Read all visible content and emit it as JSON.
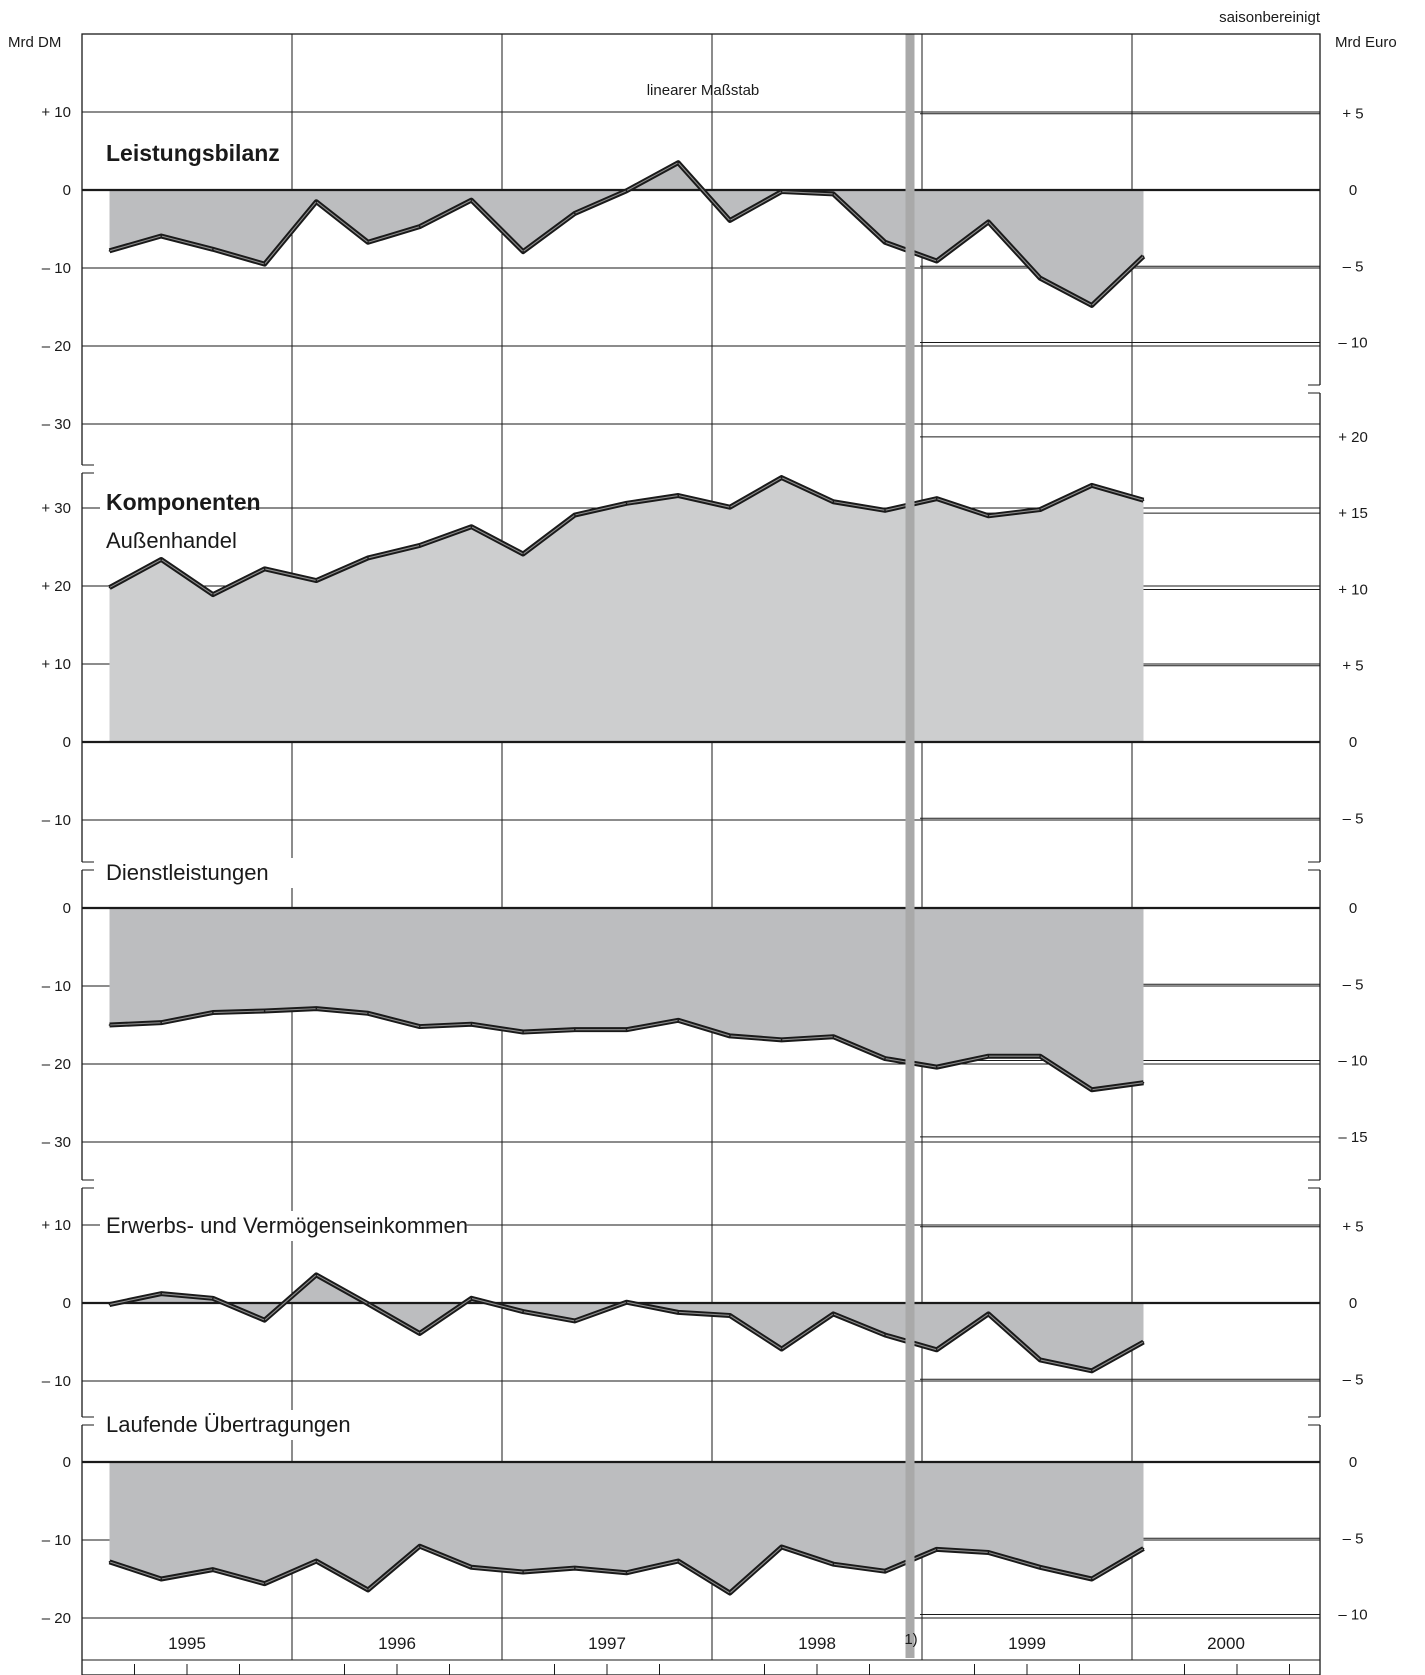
{
  "header": {
    "note": "saisonbereinigt",
    "left_unit": "Mrd DM",
    "right_unit": "Mrd Euro",
    "scale_note": "linearer Maßstab",
    "footnote_marker": "1)"
  },
  "chart_data": {
    "type": "area",
    "x_axis": {
      "years": [
        "1995",
        "1996",
        "1997",
        "1998",
        "1999",
        "2000"
      ],
      "quarters_per_year": 4,
      "points": 21,
      "first_point": "1995 Q1",
      "last_point": "2000 Q1",
      "euro_changeover_after": "1998 Q4"
    },
    "colors": {
      "fill": "#bcbdbf",
      "fill_light": "#cdcecf",
      "line": "#1a1a1a",
      "euro_band": "#a9a9a9"
    },
    "panels": [
      {
        "id": "leistungsbilanz",
        "title": "Leistungsbilanz",
        "subtitle": "",
        "bold": true,
        "ylim_dm": [
          -35,
          15
        ],
        "left_ticks": [
          10,
          0,
          -10,
          -20,
          -30
        ],
        "left_tick_labels": [
          "+ 10",
          "0",
          "– 10",
          "– 20",
          "– 30"
        ],
        "right_ticks": [
          5,
          0,
          -5,
          -10
        ],
        "right_tick_labels": [
          "+ 5",
          "0",
          "– 5",
          "– 10"
        ],
        "values": [
          -7.8,
          -5.9,
          -7.6,
          -9.5,
          -1.5,
          -6.7,
          -4.7,
          -1.3,
          -7.9,
          -3.0,
          -0.1,
          3.5,
          -3.9,
          -0.2,
          -0.5,
          -6.7,
          -9.1,
          -4.1,
          -11.3,
          -14.8,
          -8.5
        ]
      },
      {
        "id": "aussenhandel",
        "title": "Komponenten",
        "subtitle": "Außenhandel",
        "bold": true,
        "ylim_dm": [
          -20,
          35
        ],
        "left_ticks": [
          30,
          20,
          10,
          0,
          -10
        ],
        "left_tick_labels": [
          "+ 30",
          "+ 20",
          "+ 10",
          "0",
          "– 10"
        ],
        "right_ticks": [
          20,
          15,
          10,
          5,
          0,
          -5
        ],
        "right_tick_labels": [
          "+ 20",
          "+ 15",
          "+ 10",
          "+ 5",
          "0",
          "– 5"
        ],
        "values": [
          19.8,
          23.4,
          18.9,
          22.2,
          20.7,
          23.6,
          25.2,
          27.6,
          24.1,
          29.1,
          30.6,
          31.6,
          30.1,
          33.9,
          30.8,
          29.7,
          31.2,
          29.0,
          29.8,
          32.9,
          31.0
        ]
      },
      {
        "id": "dienstleistungen",
        "title": "Dienstleistungen",
        "subtitle": "",
        "bold": false,
        "ylim_dm": [
          -35,
          5
        ],
        "left_ticks": [
          0,
          -10,
          -20,
          -30
        ],
        "left_tick_labels": [
          "0",
          "– 10",
          "– 20",
          "– 30"
        ],
        "right_ticks": [
          0,
          -5,
          -10,
          -15
        ],
        "right_tick_labels": [
          "0",
          "– 5",
          "– 10",
          "– 15"
        ],
        "values": [
          -15.0,
          -14.7,
          -13.4,
          -13.2,
          -12.9,
          -13.5,
          -15.2,
          -14.9,
          -15.9,
          -15.6,
          -15.6,
          -14.4,
          -16.4,
          -16.9,
          -16.5,
          -19.3,
          -20.4,
          -19.0,
          -19.0,
          -23.3,
          -22.4
        ]
      },
      {
        "id": "erwerbseinkommen",
        "title": "Erwerbs- und Vermögenseinkommen",
        "subtitle": "",
        "bold": false,
        "ylim_dm": [
          -15,
          15
        ],
        "left_ticks": [
          10,
          0,
          -10
        ],
        "left_tick_labels": [
          "+ 10",
          "0",
          "– 10"
        ],
        "right_ticks": [
          5,
          0,
          -5
        ],
        "right_tick_labels": [
          "+ 5",
          "0",
          "– 5"
        ],
        "values": [
          -0.2,
          1.2,
          0.6,
          -2.2,
          3.6,
          -0.1,
          -3.9,
          0.6,
          -1.1,
          -2.3,
          0.1,
          -1.2,
          -1.6,
          -5.9,
          -1.4,
          -4.1,
          -6.0,
          -1.4,
          -7.3,
          -8.7,
          -5.0
        ]
      },
      {
        "id": "uebertragungen",
        "title": "Laufende Übertragungen",
        "subtitle": "",
        "bold": false,
        "ylim_dm": [
          -25,
          5
        ],
        "left_ticks": [
          0,
          -10,
          -20
        ],
        "left_tick_labels": [
          "0",
          "– 10",
          "– 20"
        ],
        "right_ticks": [
          0,
          -5,
          -10
        ],
        "right_tick_labels": [
          "0",
          "– 5",
          "– 10"
        ],
        "values": [
          -12.8,
          -15.0,
          -13.8,
          -15.6,
          -12.7,
          -16.4,
          -10.8,
          -13.5,
          -14.1,
          -13.6,
          -14.2,
          -12.7,
          -16.8,
          -10.9,
          -13.1,
          -14.0,
          -11.2,
          -11.6,
          -13.5,
          -15.0,
          -11.1
        ]
      }
    ]
  }
}
